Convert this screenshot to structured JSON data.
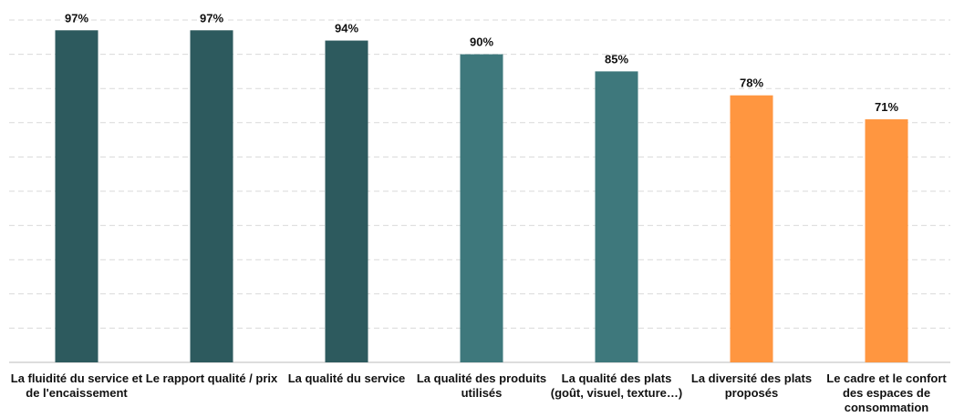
{
  "chart_data": {
    "type": "bar",
    "categories": [
      "La fluidité du service et de l'encaissement",
      "Le rapport qualité / prix",
      "La qualité du service",
      "La qualité des produits utilisés",
      "La qualité des plats (goût, visuel, texture…)",
      "La diversité des plats proposés",
      "Le cadre et le confort des espaces de consommation"
    ],
    "values": [
      97,
      97,
      94,
      90,
      85,
      78,
      71
    ],
    "value_labels": [
      "97%",
      "97%",
      "94%",
      "90%",
      "85%",
      "78%",
      "71%"
    ],
    "colors": [
      "#2d5a5e",
      "#2d5a5e",
      "#2d5a5e",
      "#3e787c",
      "#3e787c",
      "#ff9640",
      "#ff9640"
    ],
    "ylim": [
      0,
      100
    ],
    "yticks": [
      0,
      10,
      20,
      30,
      40,
      50,
      60,
      70,
      80,
      90,
      100
    ],
    "grid": true
  }
}
